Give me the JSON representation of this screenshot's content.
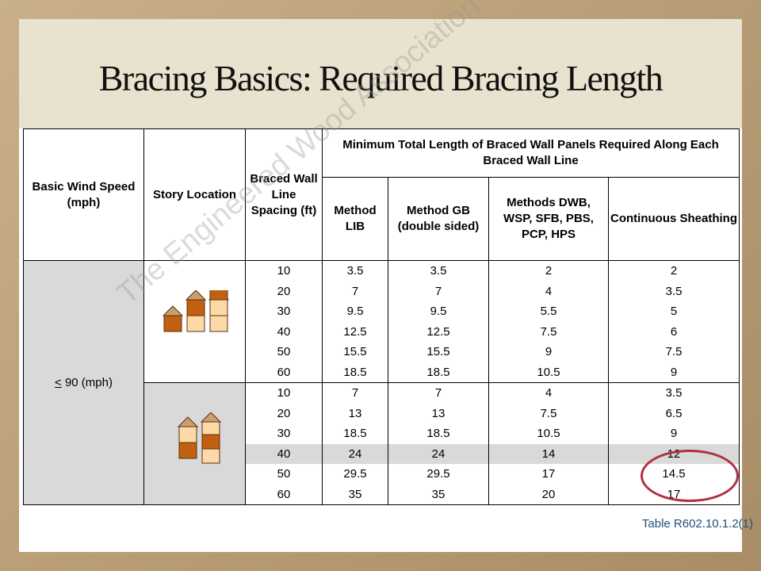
{
  "slide": {
    "title": "Bracing Basics: Required Bracing Length",
    "table_ref": "Table R602.10.1.2(1)",
    "watermark": "The Engineered Wood Association"
  },
  "table": {
    "headers": {
      "basic_wind_speed": "Basic Wind Speed (mph)",
      "story_location": "Story Location",
      "braced_wall_line_spacing": "Braced Wall Line Spacing (ft)",
      "minimum_total_length": "Minimum Total Length of Braced Wall Panels Required Along Each Braced Wall Line",
      "method_lib": "Method LIB",
      "method_gb": "Method GB (double sided)",
      "methods_dwb": "Methods DWB, WSP, SFB, PBS, PCP, HPS",
      "continuous_sheathing": "Continuous Sheathing"
    },
    "wind_speed_prefix": "<",
    "wind_speed_value": " 90 (mph)",
    "story_icons": [
      "building-story-icon-1",
      "building-story-icon-2"
    ],
    "highlight_color": "#b03040",
    "groups": [
      {
        "rows": [
          {
            "spacing": "10",
            "lib": "3.5",
            "gb": "3.5",
            "dwb": "2",
            "cs": "2"
          },
          {
            "spacing": "20",
            "lib": "7",
            "gb": "7",
            "dwb": "4",
            "cs": "3.5"
          },
          {
            "spacing": "30",
            "lib": "9.5",
            "gb": "9.5",
            "dwb": "5.5",
            "cs": "5"
          },
          {
            "spacing": "40",
            "lib": "12.5",
            "gb": "12.5",
            "dwb": "7.5",
            "cs": "6"
          },
          {
            "spacing": "50",
            "lib": "15.5",
            "gb": "15.5",
            "dwb": "9",
            "cs": "7.5"
          },
          {
            "spacing": "60",
            "lib": "18.5",
            "gb": "18.5",
            "dwb": "10.5",
            "cs": "9"
          }
        ]
      },
      {
        "rows": [
          {
            "spacing": "10",
            "lib": "7",
            "gb": "7",
            "dwb": "4",
            "cs": "3.5"
          },
          {
            "spacing": "20",
            "lib": "13",
            "gb": "13",
            "dwb": "7.5",
            "cs": "6.5"
          },
          {
            "spacing": "30",
            "lib": "18.5",
            "gb": "18.5",
            "dwb": "10.5",
            "cs": "9"
          },
          {
            "spacing": "40",
            "lib": "24",
            "gb": "24",
            "dwb": "14",
            "cs": "12"
          },
          {
            "spacing": "50",
            "lib": "29.5",
            "gb": "29.5",
            "dwb": "17",
            "cs": "14.5"
          },
          {
            "spacing": "60",
            "lib": "35",
            "gb": "35",
            "dwb": "20",
            "cs": "17"
          }
        ]
      }
    ]
  }
}
